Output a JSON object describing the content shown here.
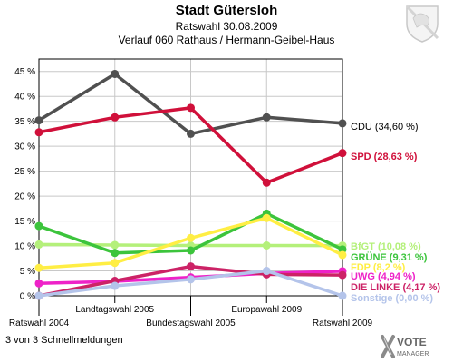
{
  "header": {
    "title": "Stadt Gütersloh",
    "subtitle": "Ratswahl 30.08.2009",
    "subtitle2": "Verlauf 060 Rathaus / Hermann-Geibel-Haus"
  },
  "footer": {
    "note": "3 von 3 Schnellmeldungen",
    "brand_line1": "VOTE",
    "brand_line2": "MANAGER"
  },
  "chart_data": {
    "type": "line",
    "title": "Verlauf 060 Rathaus / Hermann-Geibel-Haus",
    "categories": [
      "Ratswahl 2004",
      "Landtagswahl 2005",
      "Bundestagswahl 2005",
      "Europawahl 2009",
      "Ratswahl 2009"
    ],
    "ylim": [
      0,
      47.5
    ],
    "yticks": [
      0,
      5,
      10,
      15,
      20,
      25,
      30,
      35,
      40,
      45
    ],
    "ytick_labels": [
      "0 %",
      "5 %",
      "10 %",
      "15 %",
      "20 %",
      "25 %",
      "30 %",
      "35 %",
      "40 %",
      "45 %"
    ],
    "grid": true,
    "series": [
      {
        "name": "CDU",
        "label": "CDU (34,60 %)",
        "color": "#505050",
        "values": [
          35.2,
          44.5,
          32.5,
          35.8,
          34.6
        ]
      },
      {
        "name": "SPD",
        "label": "SPD (28,63 %)",
        "color": "#d0103a",
        "values": [
          32.8,
          35.8,
          37.7,
          22.7,
          28.63
        ]
      },
      {
        "name": "BfGT",
        "label": "BfGT (10,08 %)",
        "color": "#b4f07a",
        "values": [
          10.3,
          10.2,
          10.1,
          10.1,
          10.08
        ]
      },
      {
        "name": "GRÜNE",
        "label": "GRÜNE (9,31 %)",
        "color": "#3cc43c",
        "values": [
          14.0,
          8.6,
          9.1,
          16.5,
          9.31
        ]
      },
      {
        "name": "FDP",
        "label": "FDP (8,2 %)",
        "color": "#ffee44",
        "values": [
          5.6,
          6.6,
          11.6,
          15.6,
          8.2
        ]
      },
      {
        "name": "UWG",
        "label": "UWG (4,94 %)",
        "color": "#ee22c8",
        "values": [
          2.5,
          2.9,
          3.7,
          4.5,
          4.94
        ]
      },
      {
        "name": "DIE LINKE",
        "label": "DIE LINKE (4,17 %)",
        "color": "#cc2266",
        "values": [
          0,
          3.0,
          5.9,
          4.3,
          4.17
        ]
      },
      {
        "name": "Sonstige",
        "label": "Sonstige (0,00 %)",
        "color": "#b4c4ea",
        "values": [
          0,
          2.0,
          3.3,
          5.0,
          0.0
        ]
      }
    ]
  }
}
